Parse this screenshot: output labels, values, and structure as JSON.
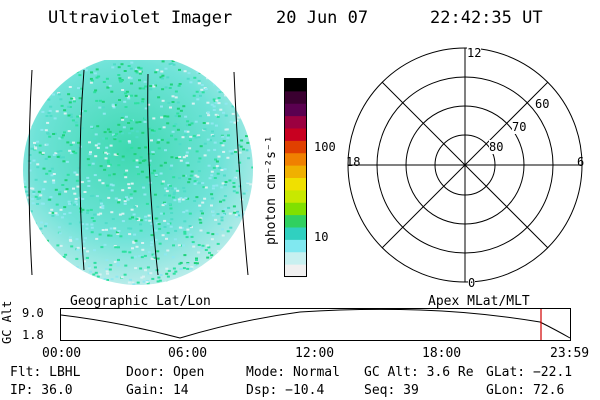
{
  "header": {
    "instrument": "Ultraviolet Imager",
    "date": "20 Jun 07",
    "time": "22:42:35 UT"
  },
  "left_panel": {
    "caption": "Geographic Lat/Lon",
    "image": "uv-aurora-noise-disk"
  },
  "colorbar": {
    "unit_label": "photon cm⁻²s⁻¹",
    "ticks": [
      "100",
      "10"
    ],
    "colors": [
      "#000000",
      "#3a0030",
      "#5a0050",
      "#9b0040",
      "#c80020",
      "#e04000",
      "#f08000",
      "#f0b000",
      "#f0e000",
      "#c8e800",
      "#80e000",
      "#30d060",
      "#30d0c0",
      "#80e8f0",
      "#c8f0f0",
      "#f0f0f0"
    ]
  },
  "polar_plot": {
    "caption": "Apex MLat/MLT",
    "mlt_labels": [
      "12",
      "18",
      "6",
      "0"
    ],
    "lat_labels": [
      "60",
      "70",
      "80"
    ]
  },
  "altitude_plot": {
    "ylabel": "GC Alt",
    "yticks": [
      "9.0",
      "1.8"
    ],
    "xticks": [
      "00:00",
      "06:00",
      "12:00",
      "18:00",
      "23:59"
    ],
    "marker_color": "#d00000"
  },
  "info": {
    "filter": "Flt: LBHL",
    "ip": "IP: 36.0",
    "door": "Door: Open",
    "gain": "Gain: 14",
    "mode": "Mode: Normal",
    "dsp": "Dsp:  −10.4",
    "gc_alt": "GC Alt: 3.6 Re",
    "seq": "Seq: 39",
    "glat": "GLat: −22.1",
    "glon": "GLon:  72.6"
  }
}
